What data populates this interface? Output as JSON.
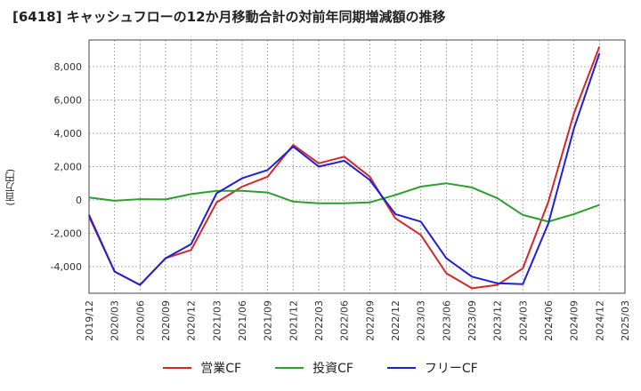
{
  "chart_data": {
    "type": "line",
    "title": "[6418]  キャッシュフローの12か月移動合計の対前年同期増減額の推移",
    "ylabel": "(百万円)",
    "xlabel": "",
    "ylim": [
      -5600,
      9600
    ],
    "yticks": [
      -4000,
      -2000,
      0,
      2000,
      4000,
      6000,
      8000
    ],
    "ytick_labels": [
      "-4,000",
      "-2,000",
      "0",
      "2,000",
      "4,000",
      "6,000",
      "8,000"
    ],
    "x_ticks": [
      "2019/12",
      "2020/03",
      "2020/06",
      "2020/09",
      "2020/12",
      "2021/03",
      "2021/06",
      "2021/09",
      "2021/12",
      "2022/03",
      "2022/06",
      "2022/09",
      "2022/12",
      "2023/03",
      "2023/06",
      "2023/09",
      "2023/12",
      "2024/03",
      "2024/06",
      "2024/09",
      "2024/12",
      "2025/03"
    ],
    "grid": true,
    "legend_position": "bottom",
    "series": [
      {
        "name": "営業CF",
        "color": "#d62728",
        "values": [
          -1000,
          -4300,
          -5100,
          -3500,
          -3000,
          -150,
          800,
          1400,
          3300,
          2200,
          2600,
          1400,
          -1100,
          -2100,
          -4400,
          -5300,
          -5100,
          -4100,
          -100,
          5200,
          9200
        ]
      },
      {
        "name": "投資CF",
        "color": "#2ca02c",
        "values": [
          150,
          -50,
          50,
          30,
          350,
          550,
          550,
          450,
          -100,
          -200,
          -200,
          -150,
          300,
          800,
          1000,
          750,
          100,
          -900,
          -1300,
          -850,
          -300
        ]
      },
      {
        "name": "フリーCF",
        "color": "#1f1fd6",
        "values": [
          -900,
          -4300,
          -5100,
          -3500,
          -2650,
          400,
          1300,
          1800,
          3200,
          2000,
          2350,
          1200,
          -850,
          -1300,
          -3500,
          -4600,
          -5000,
          -5050,
          -1400,
          4300,
          8800
        ]
      }
    ]
  }
}
